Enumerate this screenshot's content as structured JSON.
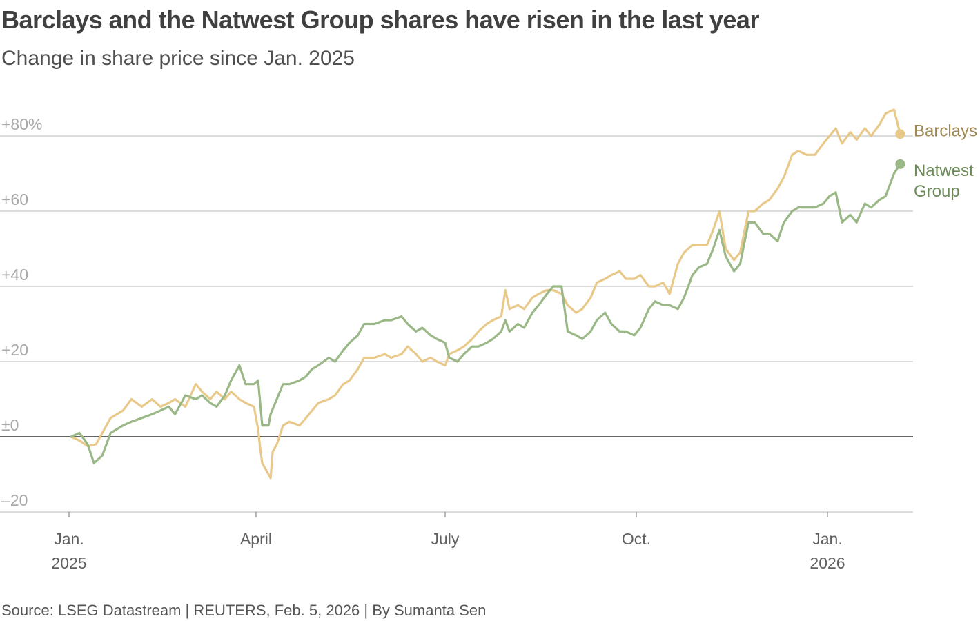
{
  "header": {
    "title": "Barclays and the Natwest Group shares have risen in the last year",
    "subtitle": "Change in share price since Jan. 2025"
  },
  "footer": {
    "source": "Source: LSEG Datastream | REUTERS, Feb. 5, 2026 | By Sumanta Sen"
  },
  "colors": {
    "barclays": "#e8c98a",
    "natwest": "#99b886",
    "barclays_label": "#a08a52",
    "natwest_label": "#6c8a58",
    "grid": "#c8c8c8",
    "zero_line": "#333333"
  },
  "chart_data": {
    "type": "line",
    "title": "Barclays and the Natwest Group shares have risen in the last year",
    "subtitle": "Change in share price since Jan. 2025",
    "ylabel": "",
    "xlabel": "",
    "ylim": [
      -20,
      80
    ],
    "xlim": [
      "2025-01-01",
      "2026-02-05"
    ],
    "grid": true,
    "legend": "direct labels at right end of lines",
    "y_ticks": [
      {
        "value": 80,
        "label": "+80%"
      },
      {
        "value": 60,
        "label": "+60"
      },
      {
        "value": 40,
        "label": "+40"
      },
      {
        "value": 20,
        "label": "+20"
      },
      {
        "value": 0,
        "label": "±0"
      },
      {
        "value": -20,
        "label": "–20"
      }
    ],
    "x_ticks": [
      {
        "date": "2025-01-01",
        "label": "Jan.",
        "sublabel": "2025"
      },
      {
        "date": "2025-04-01",
        "label": "April",
        "sublabel": ""
      },
      {
        "date": "2025-07-01",
        "label": "July",
        "sublabel": ""
      },
      {
        "date": "2025-10-01",
        "label": "Oct.",
        "sublabel": ""
      },
      {
        "date": "2026-01-01",
        "label": "Jan.",
        "sublabel": "2026"
      }
    ],
    "series": [
      {
        "name": "Barclays",
        "label": "Barclays",
        "color": "#e8c98a",
        "data": [
          [
            "2025-01-02",
            0
          ],
          [
            "2025-01-06",
            -1
          ],
          [
            "2025-01-10",
            -2.5
          ],
          [
            "2025-01-14",
            -2
          ],
          [
            "2025-01-17",
            1
          ],
          [
            "2025-01-21",
            5
          ],
          [
            "2025-01-27",
            7
          ],
          [
            "2025-01-31",
            10
          ],
          [
            "2025-02-05",
            8
          ],
          [
            "2025-02-10",
            10
          ],
          [
            "2025-02-14",
            8
          ],
          [
            "2025-02-18",
            9
          ],
          [
            "2025-02-21",
            10
          ],
          [
            "2025-02-26",
            8
          ],
          [
            "2025-03-03",
            14
          ],
          [
            "2025-03-06",
            12
          ],
          [
            "2025-03-10",
            10
          ],
          [
            "2025-03-13",
            12
          ],
          [
            "2025-03-17",
            10
          ],
          [
            "2025-03-20",
            12
          ],
          [
            "2025-03-24",
            10
          ],
          [
            "2025-03-27",
            9
          ],
          [
            "2025-03-31",
            8
          ],
          [
            "2025-04-02",
            2
          ],
          [
            "2025-04-03",
            -3
          ],
          [
            "2025-04-04",
            -7
          ],
          [
            "2025-04-07",
            -10
          ],
          [
            "2025-04-08",
            -11
          ],
          [
            "2025-04-09",
            -4
          ],
          [
            "2025-04-11",
            -2
          ],
          [
            "2025-04-14",
            3
          ],
          [
            "2025-04-17",
            4
          ],
          [
            "2025-04-22",
            3
          ],
          [
            "2025-04-25",
            5
          ],
          [
            "2025-04-28",
            7
          ],
          [
            "2025-05-01",
            9
          ],
          [
            "2025-05-06",
            10
          ],
          [
            "2025-05-09",
            11
          ],
          [
            "2025-05-13",
            14
          ],
          [
            "2025-05-16",
            15
          ],
          [
            "2025-05-20",
            18
          ],
          [
            "2025-05-23",
            21
          ],
          [
            "2025-05-28",
            21
          ],
          [
            "2025-06-02",
            22
          ],
          [
            "2025-06-05",
            21
          ],
          [
            "2025-06-10",
            22
          ],
          [
            "2025-06-13",
            24
          ],
          [
            "2025-06-17",
            22
          ],
          [
            "2025-06-20",
            20
          ],
          [
            "2025-06-24",
            21
          ],
          [
            "2025-06-27",
            20
          ],
          [
            "2025-07-01",
            19
          ],
          [
            "2025-07-03",
            22
          ],
          [
            "2025-07-07",
            23
          ],
          [
            "2025-07-10",
            24
          ],
          [
            "2025-07-14",
            26
          ],
          [
            "2025-07-17",
            28
          ],
          [
            "2025-07-21",
            30
          ],
          [
            "2025-07-24",
            31
          ],
          [
            "2025-07-28",
            32
          ],
          [
            "2025-07-30",
            39
          ],
          [
            "2025-08-01",
            34
          ],
          [
            "2025-08-05",
            35
          ],
          [
            "2025-08-08",
            34
          ],
          [
            "2025-08-12",
            37
          ],
          [
            "2025-08-15",
            38
          ],
          [
            "2025-08-19",
            39
          ],
          [
            "2025-08-22",
            39
          ],
          [
            "2025-08-26",
            38
          ],
          [
            "2025-08-29",
            35
          ],
          [
            "2025-09-02",
            33
          ],
          [
            "2025-09-05",
            34
          ],
          [
            "2025-09-09",
            37
          ],
          [
            "2025-09-12",
            41
          ],
          [
            "2025-09-16",
            42
          ],
          [
            "2025-09-19",
            43
          ],
          [
            "2025-09-23",
            44
          ],
          [
            "2025-09-26",
            42
          ],
          [
            "2025-09-30",
            42
          ],
          [
            "2025-10-03",
            43
          ],
          [
            "2025-10-07",
            40
          ],
          [
            "2025-10-10",
            40
          ],
          [
            "2025-10-14",
            41
          ],
          [
            "2025-10-17",
            38
          ],
          [
            "2025-10-21",
            46
          ],
          [
            "2025-10-24",
            49
          ],
          [
            "2025-10-28",
            51
          ],
          [
            "2025-10-31",
            51
          ],
          [
            "2025-11-04",
            51
          ],
          [
            "2025-11-07",
            55
          ],
          [
            "2025-11-10",
            60
          ],
          [
            "2025-11-13",
            50
          ],
          [
            "2025-11-17",
            47
          ],
          [
            "2025-11-20",
            49
          ],
          [
            "2025-11-24",
            60
          ],
          [
            "2025-11-27",
            60
          ],
          [
            "2025-12-01",
            62
          ],
          [
            "2025-12-04",
            63
          ],
          [
            "2025-12-08",
            66
          ],
          [
            "2025-12-11",
            69
          ],
          [
            "2025-12-15",
            75
          ],
          [
            "2025-12-18",
            76
          ],
          [
            "2025-12-22",
            75
          ],
          [
            "2025-12-26",
            75
          ],
          [
            "2025-12-30",
            78
          ],
          [
            "2026-01-02",
            80
          ],
          [
            "2026-01-05",
            82
          ],
          [
            "2026-01-08",
            78
          ],
          [
            "2026-01-12",
            81
          ],
          [
            "2026-01-15",
            79
          ],
          [
            "2026-01-19",
            82
          ],
          [
            "2026-01-22",
            80
          ],
          [
            "2026-01-26",
            83
          ],
          [
            "2026-01-29",
            86
          ],
          [
            "2026-02-02",
            87
          ],
          [
            "2026-02-05",
            80.5
          ]
        ]
      },
      {
        "name": "Natwest Group",
        "label": "Natwest Group",
        "color": "#99b886",
        "data": [
          [
            "2025-01-02",
            0
          ],
          [
            "2025-01-06",
            1
          ],
          [
            "2025-01-10",
            -2
          ],
          [
            "2025-01-13",
            -7
          ],
          [
            "2025-01-17",
            -5
          ],
          [
            "2025-01-21",
            1
          ],
          [
            "2025-01-27",
            3
          ],
          [
            "2025-01-31",
            4
          ],
          [
            "2025-02-05",
            5
          ],
          [
            "2025-02-10",
            6
          ],
          [
            "2025-02-14",
            7
          ],
          [
            "2025-02-18",
            8
          ],
          [
            "2025-02-21",
            6
          ],
          [
            "2025-02-26",
            11
          ],
          [
            "2025-03-03",
            10
          ],
          [
            "2025-03-06",
            11
          ],
          [
            "2025-03-10",
            9
          ],
          [
            "2025-03-13",
            8
          ],
          [
            "2025-03-17",
            11
          ],
          [
            "2025-03-20",
            15
          ],
          [
            "2025-03-24",
            19
          ],
          [
            "2025-03-27",
            14
          ],
          [
            "2025-03-31",
            14
          ],
          [
            "2025-04-02",
            15
          ],
          [
            "2025-04-03",
            9
          ],
          [
            "2025-04-04",
            3
          ],
          [
            "2025-04-07",
            3
          ],
          [
            "2025-04-08",
            6
          ],
          [
            "2025-04-11",
            10
          ],
          [
            "2025-04-14",
            14
          ],
          [
            "2025-04-17",
            14
          ],
          [
            "2025-04-22",
            15
          ],
          [
            "2025-04-25",
            16
          ],
          [
            "2025-04-28",
            18
          ],
          [
            "2025-05-01",
            19
          ],
          [
            "2025-05-06",
            21
          ],
          [
            "2025-05-09",
            20
          ],
          [
            "2025-05-13",
            23
          ],
          [
            "2025-05-16",
            25
          ],
          [
            "2025-05-20",
            27
          ],
          [
            "2025-05-23",
            30
          ],
          [
            "2025-05-28",
            30
          ],
          [
            "2025-06-02",
            31
          ],
          [
            "2025-06-05",
            31
          ],
          [
            "2025-06-10",
            32
          ],
          [
            "2025-06-13",
            30
          ],
          [
            "2025-06-17",
            28
          ],
          [
            "2025-06-20",
            29
          ],
          [
            "2025-06-24",
            27
          ],
          [
            "2025-06-27",
            26
          ],
          [
            "2025-07-01",
            25
          ],
          [
            "2025-07-03",
            21
          ],
          [
            "2025-07-07",
            20
          ],
          [
            "2025-07-10",
            22
          ],
          [
            "2025-07-14",
            24
          ],
          [
            "2025-07-17",
            24
          ],
          [
            "2025-07-21",
            25
          ],
          [
            "2025-07-24",
            26
          ],
          [
            "2025-07-28",
            28
          ],
          [
            "2025-07-30",
            31
          ],
          [
            "2025-08-01",
            28
          ],
          [
            "2025-08-05",
            30
          ],
          [
            "2025-08-08",
            29
          ],
          [
            "2025-08-12",
            33
          ],
          [
            "2025-08-15",
            35
          ],
          [
            "2025-08-19",
            38
          ],
          [
            "2025-08-22",
            40
          ],
          [
            "2025-08-26",
            40
          ],
          [
            "2025-08-29",
            28
          ],
          [
            "2025-09-02",
            27
          ],
          [
            "2025-09-05",
            26
          ],
          [
            "2025-09-09",
            28
          ],
          [
            "2025-09-12",
            31
          ],
          [
            "2025-09-16",
            33
          ],
          [
            "2025-09-19",
            30
          ],
          [
            "2025-09-23",
            28
          ],
          [
            "2025-09-26",
            28
          ],
          [
            "2025-09-30",
            27
          ],
          [
            "2025-10-03",
            29
          ],
          [
            "2025-10-07",
            34
          ],
          [
            "2025-10-10",
            36
          ],
          [
            "2025-10-14",
            35
          ],
          [
            "2025-10-17",
            35
          ],
          [
            "2025-10-21",
            34
          ],
          [
            "2025-10-24",
            37
          ],
          [
            "2025-10-28",
            43
          ],
          [
            "2025-10-31",
            45
          ],
          [
            "2025-11-04",
            46
          ],
          [
            "2025-11-07",
            50
          ],
          [
            "2025-11-10",
            55
          ],
          [
            "2025-11-13",
            48
          ],
          [
            "2025-11-17",
            44
          ],
          [
            "2025-11-20",
            46
          ],
          [
            "2025-11-24",
            57
          ],
          [
            "2025-11-27",
            57
          ],
          [
            "2025-12-01",
            54
          ],
          [
            "2025-12-04",
            54
          ],
          [
            "2025-12-08",
            52
          ],
          [
            "2025-12-11",
            57
          ],
          [
            "2025-12-15",
            60
          ],
          [
            "2025-12-18",
            61
          ],
          [
            "2025-12-22",
            61
          ],
          [
            "2025-12-26",
            61
          ],
          [
            "2025-12-30",
            62
          ],
          [
            "2026-01-02",
            64
          ],
          [
            "2026-01-05",
            65
          ],
          [
            "2026-01-08",
            57
          ],
          [
            "2026-01-12",
            59
          ],
          [
            "2026-01-15",
            57
          ],
          [
            "2026-01-19",
            62
          ],
          [
            "2026-01-22",
            61
          ],
          [
            "2026-01-26",
            63
          ],
          [
            "2026-01-29",
            64
          ],
          [
            "2026-02-02",
            70
          ],
          [
            "2026-02-05",
            72.5
          ]
        ]
      }
    ]
  }
}
